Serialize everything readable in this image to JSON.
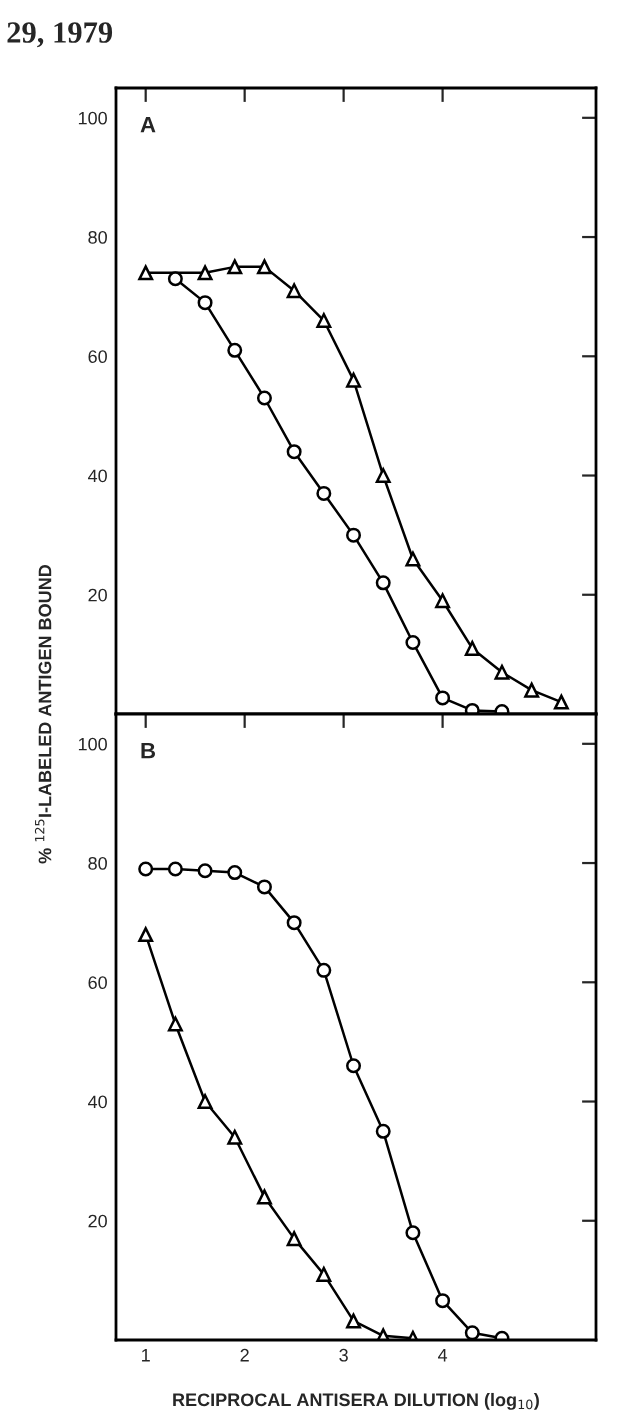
{
  "chart_data": [
    {
      "type": "line",
      "ylabel": "% $^{125}$I-LABELED ANTIGEN BOUND",
      "annotations": [
        "A",
        "29, 1979"
      ],
      "xlim": [
        0.7,
        5.55
      ],
      "ylim": [
        0,
        105
      ],
      "xticks": [
        1,
        2,
        3,
        4
      ],
      "yticks": [
        20,
        40,
        60,
        80,
        100
      ],
      "tick_labels": "y",
      "grid": false,
      "series": [
        {
          "color": "#000000",
          "marker": "triangle",
          "x": [
            1.0,
            1.6,
            1.9,
            2.2,
            2.5,
            2.8,
            3.1,
            3.4,
            3.7,
            4.0,
            4.3,
            4.6,
            4.9,
            5.2
          ],
          "values": [
            74,
            74,
            75,
            75,
            71,
            66,
            56,
            40,
            26,
            19,
            11,
            7,
            4,
            2
          ]
        },
        {
          "color": "#000000",
          "marker": "circle",
          "x": [
            1.3,
            1.6,
            1.9,
            2.2,
            2.5,
            2.8,
            3.1,
            3.4,
            3.7,
            4.0,
            4.3,
            4.6
          ],
          "values": [
            73,
            69,
            61,
            53,
            44,
            37,
            30,
            22,
            12,
            2.7,
            0.6,
            0.4
          ]
        }
      ]
    },
    {
      "type": "line",
      "xlabel": "RECIPROCAL ANTISERA DILUTION (log$_{10}$)",
      "annotations": [
        "B"
      ],
      "xlim": [
        0.7,
        5.55
      ],
      "ylim": [
        0,
        105
      ],
      "xticks": [
        1,
        2,
        3,
        4
      ],
      "yticks": [
        20,
        40,
        60,
        80,
        100
      ],
      "grid": false,
      "series": [
        {
          "color": "#000000",
          "marker": "circle",
          "x": [
            1.0,
            1.3,
            1.6,
            1.9,
            2.2,
            2.5,
            2.8,
            3.1,
            3.4,
            3.7,
            4.0,
            4.3,
            4.6
          ],
          "values": [
            79,
            79,
            78.7,
            78.4,
            76,
            70,
            62,
            46,
            35,
            18,
            6.6,
            1.2,
            0.3
          ]
        },
        {
          "color": "#000000",
          "marker": "triangle",
          "x": [
            1.0,
            1.3,
            1.6,
            1.9,
            2.2,
            2.5,
            2.8,
            3.1,
            3.4,
            3.7
          ],
          "values": [
            68,
            53,
            40,
            34,
            24,
            17,
            11,
            3.2,
            0.7,
            0.3
          ]
        }
      ]
    }
  ]
}
